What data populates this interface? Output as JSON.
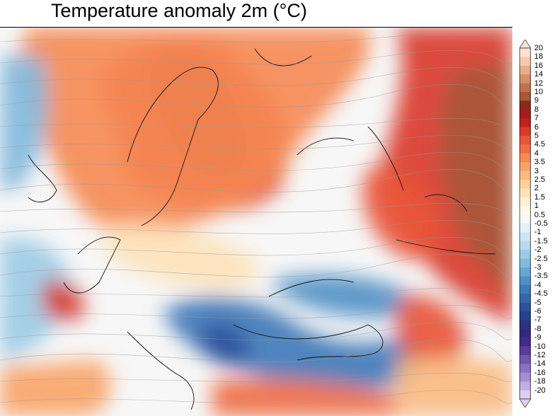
{
  "title": "Temperature anomaly 2m (°C)",
  "map": {
    "variable": "2m temperature anomaly",
    "unit": "°C",
    "region_features": [
      "coastlines",
      "country-borders",
      "wind-streamlines"
    ]
  },
  "colorbar": {
    "levels": [
      "20",
      "18",
      "16",
      "14",
      "12",
      "10",
      "9",
      "8",
      "7",
      "6",
      "5",
      "4.5",
      "4",
      "3.5",
      "3",
      "2.5",
      "2",
      "1.5",
      "1",
      "0.5",
      "-0.5",
      "-1",
      "-1.5",
      "-2",
      "-2.5",
      "-3",
      "-3.5",
      "-4",
      "-4.5",
      "-5",
      "-6",
      "-7",
      "-8",
      "-9",
      "-10",
      "-12",
      "-14",
      "-16",
      "-18",
      "-20"
    ],
    "colors": [
      "#fbe3d6",
      "#f3cbb3",
      "#e6ad8b",
      "#d48f68",
      "#bf734c",
      "#a8573a",
      "#8a2a1a",
      "#a51c1c",
      "#c0201e",
      "#d93a2a",
      "#e8553a",
      "#f06e45",
      "#f58a55",
      "#f8a468",
      "#fabb80",
      "#fcd29c",
      "#fde2b8",
      "#fef0d4",
      "#fff9ea",
      "#f7f7f7",
      "#e3f1f8",
      "#cfe6f2",
      "#b7daee",
      "#9ccbe5",
      "#82badc",
      "#68a6d2",
      "#5090c6",
      "#3f7ab8",
      "#3567ac",
      "#2c539c",
      "#28418e",
      "#2a3384",
      "#342a7c",
      "#432a86",
      "#5a3c99",
      "#7257ae",
      "#8a73c1",
      "#a58fd3",
      "#c1afe3",
      "#dccff0"
    ]
  }
}
